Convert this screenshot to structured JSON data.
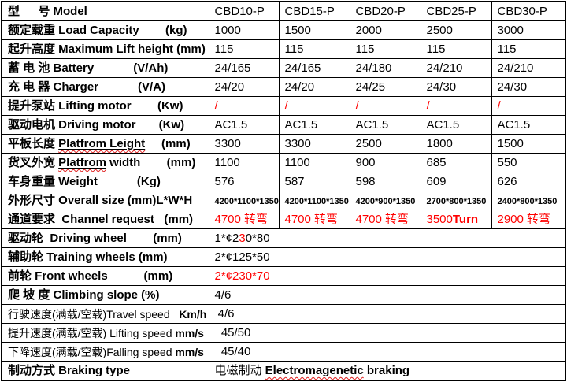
{
  "colors": {
    "red": "#ff0000",
    "wavy_underline": "#e02020",
    "border": "#000000",
    "background": "#ffffff"
  },
  "table": {
    "models": [
      "CBD10-P",
      "CBD15-P",
      "CBD20-P",
      "CBD25-P",
      "CBD30-P"
    ],
    "rows": [
      {
        "name": "model",
        "label": [
          {
            "t": "型　  号 ",
            "b": true
          },
          {
            "t": "Model",
            "b": true
          }
        ],
        "values": [
          "CBD10-P",
          "CBD15-P",
          "CBD20-P",
          "CBD25-P",
          "CBD30-P"
        ]
      },
      {
        "name": "load-capacity",
        "label": [
          {
            "t": "额定载重 Load Capacity        (kg)",
            "b": true
          }
        ],
        "values": [
          "1000",
          "1500",
          "2000",
          "2500",
          "3000"
        ]
      },
      {
        "name": "maximum-lift-height",
        "label": [
          {
            "t": "起升高度 Maximum Lift height (mm)",
            "b": true
          }
        ],
        "values": [
          "115",
          "115",
          "115",
          "115",
          "115"
        ]
      },
      {
        "name": "battery",
        "label": [
          {
            "t": "蓄 电 池 Battery            (V/Ah)",
            "b": true
          }
        ],
        "values": [
          "24/165",
          "24/165",
          "24/180",
          "24/210",
          "24/210"
        ]
      },
      {
        "name": "charger",
        "label": [
          {
            "t": "充 电 器 Charger            (V/A)",
            "b": true
          }
        ],
        "values": [
          "24/20",
          "24/20",
          "24/25",
          "24/30",
          "24/30"
        ]
      },
      {
        "name": "lifting-motor",
        "label": [
          {
            "t": "提升泵站 Lifting motor        (Kw)",
            "b": true
          }
        ],
        "values": [
          [
            {
              "t": "/",
              "r": true
            }
          ],
          [
            {
              "t": "/",
              "r": true
            }
          ],
          [
            {
              "t": "/",
              "r": true
            }
          ],
          [
            {
              "t": "/",
              "r": true
            }
          ],
          [
            {
              "t": "/",
              "r": true
            }
          ]
        ]
      },
      {
        "name": "driving-motor",
        "label": [
          {
            "t": "驱动电机 Driving motor       (Kw)",
            "b": true
          }
        ],
        "values": [
          "AC1.5",
          "AC1.5",
          "AC1.5",
          "AC1.5",
          "AC1.5"
        ]
      },
      {
        "name": "platfrom-leight",
        "label": [
          {
            "t": "平板长度 ",
            "b": true
          },
          {
            "t": "Platfrom Leight",
            "b": true,
            "u": true,
            "w": true
          },
          {
            "t": "     (mm)",
            "b": true
          }
        ],
        "values": [
          "3300",
          "3300",
          "2500",
          "1800",
          "1500"
        ]
      },
      {
        "name": "platfrom-width",
        "label": [
          {
            "t": "货叉外宽 ",
            "b": true
          },
          {
            "t": "Platfrom",
            "b": true,
            "u": true,
            "w": true
          },
          {
            "t": " width",
            "b": true
          },
          {
            "t": "        (mm)",
            "b": true
          }
        ],
        "values": [
          "1100",
          "1100",
          "900",
          "685",
          "550"
        ]
      },
      {
        "name": "weight",
        "label": [
          {
            "t": "车身重量 Weight            (Kg)",
            "b": true
          }
        ],
        "values": [
          "576",
          "587",
          "598",
          "609",
          "626"
        ]
      },
      {
        "name": "overall-size",
        "label": [
          {
            "t": "外形尺寸 Overall size (mm)L*W*H",
            "b": true
          }
        ],
        "values": [
          [
            {
              "t": "4200*1100*1350",
              "sz": "s"
            }
          ],
          [
            {
              "t": "4200*1100*1350",
              "sz": "s"
            }
          ],
          [
            {
              "t": "4200*900*1350",
              "sz": "s"
            }
          ],
          [
            {
              "t": "2700*800*1350",
              "sz": "s"
            }
          ],
          [
            {
              "t": "2400*800*1350",
              "sz": "s"
            }
          ]
        ]
      },
      {
        "name": "channel-request",
        "label": [
          {
            "t": "通道要求  Channel request   (mm)",
            "b": true
          }
        ],
        "values": [
          [
            {
              "t": "4700 转弯",
              "r": true
            }
          ],
          [
            {
              "t": "4700 转弯",
              "r": true
            }
          ],
          [
            {
              "t": "4700 转弯",
              "r": true
            }
          ],
          [
            {
              "t": "3500",
              "r": true
            },
            {
              "t": "Turn",
              "r": true,
              "b": true
            }
          ],
          [
            {
              "t": "2900 转弯",
              "r": true
            }
          ]
        ]
      },
      {
        "name": "driving-wheel",
        "merge": true,
        "label": [
          {
            "t": "驱动轮  Driving wheel        (mm)",
            "b": true
          }
        ],
        "value": [
          {
            "t": "1*¢2"
          },
          {
            "t": "3",
            "r": true
          },
          {
            "t": "0*80"
          }
        ]
      },
      {
        "name": "training-wheels",
        "merge": true,
        "label": [
          {
            "t": "辅助轮 Training wheels (mm)",
            "b": true
          }
        ],
        "value": [
          {
            "t": "2*¢125*50"
          }
        ]
      },
      {
        "name": "front-wheels",
        "merge": true,
        "label": [
          {
            "t": "前轮 Front wheels           (mm)",
            "b": true
          }
        ],
        "value": [
          {
            "t": "2*¢230*70",
            "r": true
          }
        ]
      },
      {
        "name": "climbing-slope",
        "merge": true,
        "label": [
          {
            "t": "爬 坡 度 Climbing slope (%)",
            "b": true
          }
        ],
        "value": [
          {
            "t": "4/6"
          }
        ]
      },
      {
        "name": "travel-speed",
        "merge": true,
        "small": true,
        "label": [
          {
            "t": "行驶速度(满载/空载)Travel speed   "
          },
          {
            "t": "Km/h",
            "b": true
          }
        ],
        "value": [
          {
            "t": " 4/6"
          }
        ]
      },
      {
        "name": "lifting-speed",
        "merge": true,
        "small": true,
        "label": [
          {
            "t": "提升速度(满载/空载) Lifting speed "
          },
          {
            "t": "mm/s",
            "b": true
          }
        ],
        "value": [
          {
            "t": "  45/50"
          }
        ]
      },
      {
        "name": "falling-speed",
        "merge": true,
        "small": true,
        "label": [
          {
            "t": "下降速度(满载/空载)Falling speed "
          },
          {
            "t": "mm/s",
            "b": true
          }
        ],
        "value": [
          {
            "t": "  45/40"
          }
        ]
      },
      {
        "name": "braking-type",
        "merge": true,
        "label": [
          {
            "t": "制动方式 ",
            "b": true
          },
          {
            "t": "Braking type",
            "b": true
          }
        ],
        "value": [
          {
            "t": "电磁制动 "
          },
          {
            "t": "Electromagenetic",
            "b": true,
            "u": true,
            "w": true
          },
          {
            "t": " braking",
            "b": true,
            "u": true
          }
        ]
      }
    ]
  }
}
